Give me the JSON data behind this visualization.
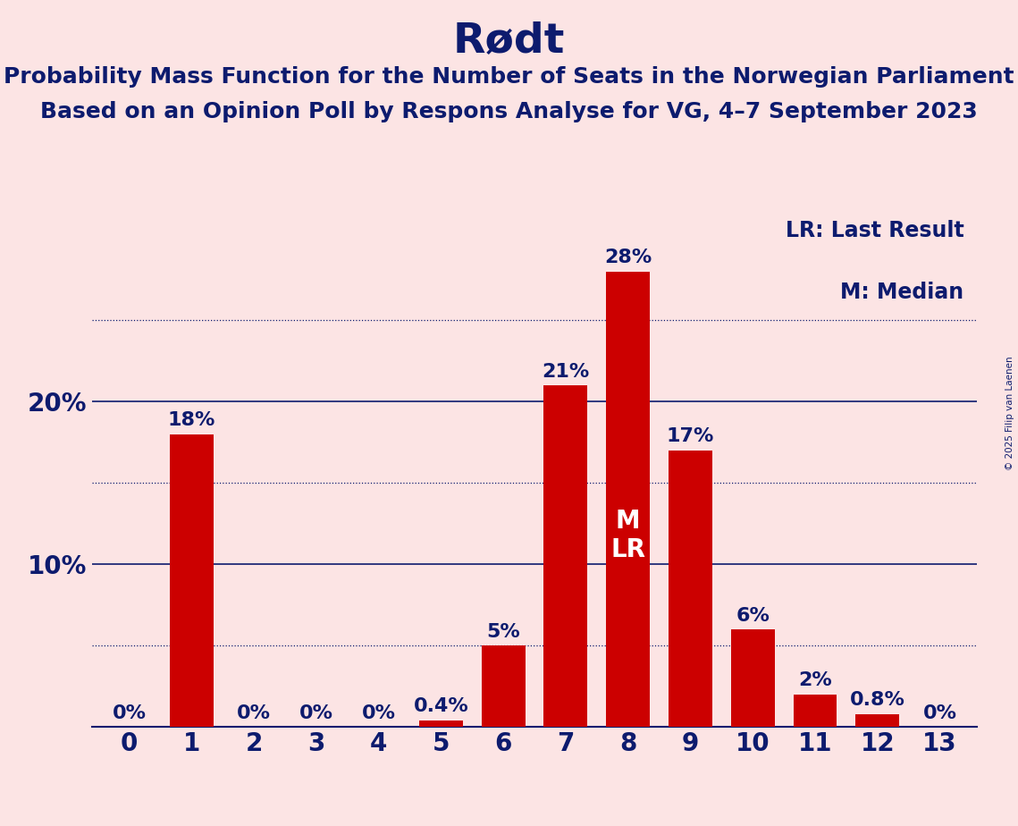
{
  "title": "Rødt",
  "subtitle1": "Probability Mass Function for the Number of Seats in the Norwegian Parliament",
  "subtitle2": "Based on an Opinion Poll by Respons Analyse for VG, 4–7 September 2023",
  "copyright": "© 2025 Filip van Laenen",
  "categories": [
    0,
    1,
    2,
    3,
    4,
    5,
    6,
    7,
    8,
    9,
    10,
    11,
    12,
    13
  ],
  "values": [
    0.0,
    18.0,
    0.0,
    0.0,
    0.0,
    0.4,
    5.0,
    21.0,
    28.0,
    17.0,
    6.0,
    2.0,
    0.8,
    0.0
  ],
  "bar_labels": [
    "0%",
    "18%",
    "0%",
    "0%",
    "0%",
    "0.4%",
    "5%",
    "21%",
    "28%",
    "17%",
    "6%",
    "2%",
    "0.8%",
    "0%"
  ],
  "bar_color": "#cc0000",
  "background_color": "#fce4e4",
  "text_color": "#0d1b6e",
  "inside_label_bars": [
    8
  ],
  "median_label": "M",
  "last_result_label": "LR",
  "legend_lr": "LR: Last Result",
  "legend_m": "M: Median",
  "ylim": [
    0,
    32
  ],
  "solid_gridlines": [
    10,
    20
  ],
  "dotted_gridlines": [
    5,
    15,
    25
  ],
  "title_fontsize": 34,
  "subtitle_fontsize": 18,
  "axis_label_fontsize": 20,
  "bar_label_fontsize": 16,
  "legend_fontsize": 17,
  "ylabel_fontsize": 20,
  "inside_ml_fontsize": 20
}
